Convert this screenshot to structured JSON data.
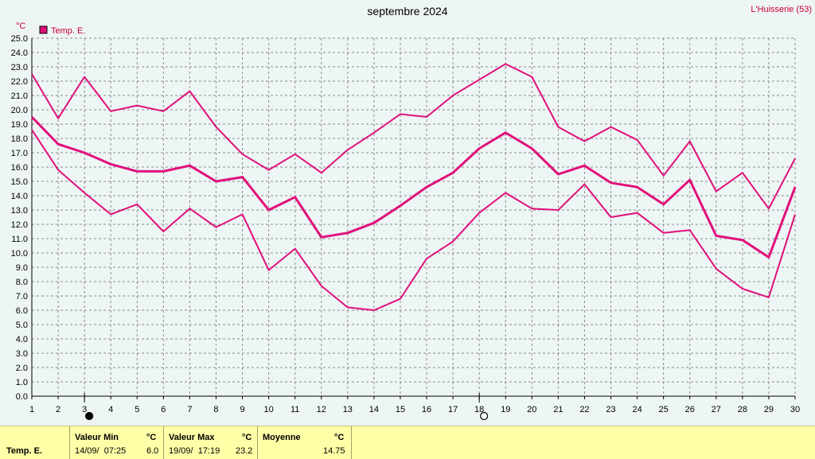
{
  "title": "septembre 2024",
  "station": "L'Huisserie (53)",
  "chart_data": {
    "type": "line",
    "unit_label": "°C",
    "x": [
      1,
      2,
      3,
      4,
      5,
      6,
      7,
      8,
      9,
      10,
      11,
      12,
      13,
      14,
      15,
      16,
      17,
      18,
      19,
      20,
      21,
      22,
      23,
      24,
      25,
      26,
      27,
      28,
      29,
      30
    ],
    "ylim": [
      0,
      25
    ],
    "yticks": [
      "0.0",
      "1.0",
      "2.0",
      "3.0",
      "4.0",
      "5.0",
      "6.0",
      "7.0",
      "8.0",
      "9.0",
      "10.0",
      "11.0",
      "12.0",
      "13.0",
      "14.0",
      "15.0",
      "16.0",
      "17.0",
      "18.0",
      "19.0",
      "20.0",
      "21.0",
      "22.0",
      "23.0",
      "24.0",
      "25.0"
    ],
    "grid": true,
    "legend": "top-left",
    "legend_label": "Temp. E.",
    "color": "#e0107a",
    "series": [
      {
        "role": "max",
        "values": [
          22.5,
          19.4,
          22.3,
          19.9,
          20.3,
          19.9,
          21.3,
          18.8,
          16.9,
          15.8,
          16.9,
          15.6,
          17.2,
          18.4,
          19.7,
          19.5,
          21.0,
          22.1,
          23.2,
          22.3,
          18.8,
          17.8,
          18.8,
          17.9,
          15.4,
          17.8,
          14.3,
          15.6,
          13.1,
          16.6
        ]
      },
      {
        "role": "mean",
        "values": [
          19.5,
          17.6,
          17.0,
          16.2,
          15.7,
          15.7,
          16.1,
          15.0,
          15.3,
          13.0,
          13.9,
          11.1,
          11.4,
          12.1,
          13.3,
          14.6,
          15.6,
          17.3,
          18.4,
          17.3,
          15.5,
          16.1,
          14.9,
          14.6,
          13.4,
          15.1,
          11.2,
          10.9,
          9.7,
          14.6
        ]
      },
      {
        "role": "min",
        "values": [
          18.6,
          15.8,
          14.2,
          12.7,
          13.4,
          11.5,
          13.1,
          11.8,
          12.7,
          8.8,
          10.3,
          7.7,
          6.2,
          6.0,
          6.8,
          9.6,
          10.8,
          12.8,
          14.2,
          13.1,
          13.0,
          14.8,
          12.5,
          12.8,
          11.4,
          11.6,
          8.9,
          7.5,
          6.9,
          12.7
        ]
      }
    ],
    "moon_markers": [
      {
        "day": 3,
        "phase": "new-moon"
      },
      {
        "day": 18,
        "phase": "full-moon"
      }
    ]
  },
  "footer": {
    "row_label": "Temp. E.",
    "min": {
      "header": "Valeur Min",
      "unit": "°C",
      "when": "14/09/  07:25",
      "value": "6.0"
    },
    "max": {
      "header": "Valeur Max",
      "unit": "°C",
      "when": "19/09/  17:19",
      "value": "23.2"
    },
    "mean": {
      "header": "Moyenne",
      "unit": "°C",
      "value": "14.75"
    }
  }
}
